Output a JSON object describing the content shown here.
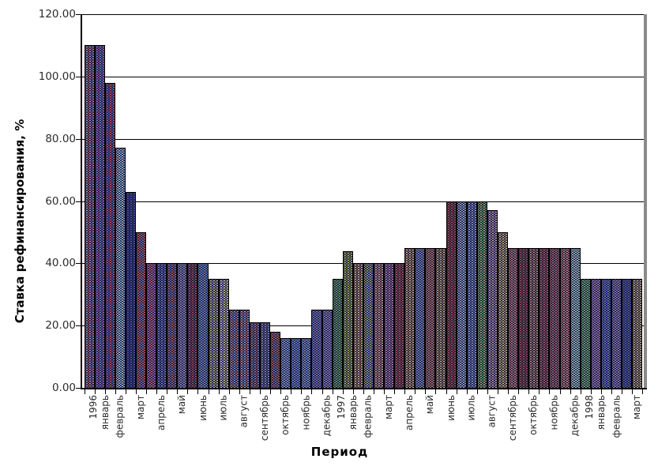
{
  "chart_data": {
    "type": "bar",
    "title": "",
    "ylabel": "Ставка рефинансирования, %",
    "xlabel": "Период",
    "ylim": [
      0,
      120
    ],
    "grid": true,
    "legend_position": "none",
    "yticks": [
      {
        "value": 0,
        "label": "0.00"
      },
      {
        "value": 20,
        "label": "20.00"
      },
      {
        "value": 40,
        "label": "40.00"
      },
      {
        "value": 60,
        "label": "60.00"
      },
      {
        "value": 80,
        "label": "80.00"
      },
      {
        "value": 100,
        "label": "100.00"
      },
      {
        "value": 120,
        "label": "120.00"
      }
    ],
    "x_tick_labels": [
      [
        "1996",
        "январь"
      ],
      [
        "февраль"
      ],
      [
        "март"
      ],
      [
        "апрель"
      ],
      [
        "май"
      ],
      [
        "июнь"
      ],
      [
        "июль"
      ],
      [
        "август"
      ],
      [
        "сентябрь"
      ],
      [
        "октябрь"
      ],
      [
        "ноябрь"
      ],
      [
        "декабрь"
      ],
      [
        "1997",
        "январь"
      ],
      [
        "февраль"
      ],
      [
        "март"
      ],
      [
        "апрель"
      ],
      [
        "май"
      ],
      [
        "июнь"
      ],
      [
        "июль"
      ],
      [
        "август"
      ],
      [
        "сентябрь"
      ],
      [
        "октябрь"
      ],
      [
        "ноябрь"
      ],
      [
        "декабрь"
      ],
      [
        "1998",
        "январь"
      ],
      [
        "февраль"
      ],
      [
        "март"
      ]
    ],
    "label_every_n_bars": 2,
    "bars": [
      {
        "value": 110,
        "dot1": "#8f96e0",
        "dot2": "#b05868"
      },
      {
        "value": 110,
        "dot1": "#7d88dd",
        "dot2": "#9a5bb0"
      },
      {
        "value": 98,
        "dot1": "#c75f6e",
        "dot2": "#5a68c8"
      },
      {
        "value": 77,
        "dot1": "#86b2f0",
        "dot2": "#d8dcf8"
      },
      {
        "value": 63,
        "dot1": "#5560c0",
        "dot2": "#38408c"
      },
      {
        "value": 50,
        "dot1": "#c05a64",
        "dot2": "#8888cc"
      },
      {
        "value": 40,
        "dot1": "#a86ac8",
        "dot2": "#c87888"
      },
      {
        "value": 40,
        "dot1": "#7688d8",
        "dot2": "#5a5aa8"
      },
      {
        "value": 40,
        "dot1": "#b86a74",
        "dot2": "#6a74c8"
      },
      {
        "value": 40,
        "dot1": "#8a7ad0",
        "dot2": "#b0b0e0"
      },
      {
        "value": 40,
        "dot1": "#a85866",
        "dot2": "#6a4a78"
      },
      {
        "value": 40,
        "dot1": "#6a88d8",
        "dot2": "#9aa8e0"
      },
      {
        "value": 35,
        "dot1": "#cabd88",
        "dot2": "#8a96d0"
      },
      {
        "value": 35,
        "dot1": "#d8d0a0",
        "dot2": "#a0a8d8"
      },
      {
        "value": 25,
        "dot1": "#8090d8",
        "dot2": "#c07a86"
      },
      {
        "value": 25,
        "dot1": "#9aa4e2",
        "dot2": "#b06a78"
      },
      {
        "value": 21,
        "dot1": "#7a86cc",
        "dot2": "#a05a6a"
      },
      {
        "value": 21,
        "dot1": "#8a96d4",
        "dot2": "#6a5aa0"
      },
      {
        "value": 18,
        "dot1": "#b06072",
        "dot2": "#7a86c8"
      },
      {
        "value": 16,
        "dot1": "#7e9ae6",
        "dot2": "#aab6ee"
      },
      {
        "value": 16,
        "dot1": "#6a88e0",
        "dot2": "#92a2ea"
      },
      {
        "value": 16,
        "dot1": "#7890e2",
        "dot2": "#a0b0f0"
      },
      {
        "value": 25,
        "dot1": "#9078d0",
        "dot2": "#7a8ad8"
      },
      {
        "value": 25,
        "dot1": "#8886d8",
        "dot2": "#aa98e0"
      },
      {
        "value": 35,
        "dot1": "#5a9a6a",
        "dot2": "#88b890"
      },
      {
        "value": 44,
        "dot1": "#c0b878",
        "dot2": "#7a9a5a"
      },
      {
        "value": 40,
        "dot1": "#d0c4a0",
        "dot2": "#a06a5a"
      },
      {
        "value": 40,
        "dot1": "#7a8ad8",
        "dot2": "#c8b890"
      },
      {
        "value": 40,
        "dot1": "#d0a8a0",
        "dot2": "#b87a88"
      },
      {
        "value": 40,
        "dot1": "#b08ac0",
        "dot2": "#9a6aaa"
      },
      {
        "value": 40,
        "dot1": "#b8606a",
        "dot2": "#8a4a58"
      },
      {
        "value": 45,
        "dot1": "#d2bc94",
        "dot2": "#a87a6a"
      },
      {
        "value": 45,
        "dot1": "#7a8ad8",
        "dot2": "#98a6e0"
      },
      {
        "value": 45,
        "dot1": "#b06a78",
        "dot2": "#c89a8a"
      },
      {
        "value": 45,
        "dot1": "#c8b494",
        "dot2": "#9a7a68"
      },
      {
        "value": 60,
        "dot1": "#b05a64",
        "dot2": "#8a4a52"
      },
      {
        "value": 60,
        "dot1": "#8a98d8",
        "dot2": "#c0ccf0"
      },
      {
        "value": 60,
        "dot1": "#9aa8e0",
        "dot2": "#6a7ac8"
      },
      {
        "value": 60,
        "dot1": "#5a9a6a",
        "dot2": "#c8c890"
      },
      {
        "value": 57,
        "dot1": "#c8a8b8",
        "dot2": "#9a86c8"
      },
      {
        "value": 50,
        "dot1": "#d0c098",
        "dot2": "#b89a78"
      },
      {
        "value": 45,
        "dot1": "#b0687a",
        "dot2": "#d0a8a8"
      },
      {
        "value": 45,
        "dot1": "#a85a68",
        "dot2": "#7a4a58"
      },
      {
        "value": 45,
        "dot1": "#c09a8a",
        "dot2": "#98687a"
      },
      {
        "value": 45,
        "dot1": "#b0687a",
        "dot2": "#8a5866"
      },
      {
        "value": 45,
        "dot1": "#9a5a6a",
        "dot2": "#c08a96"
      },
      {
        "value": 45,
        "dot1": "#b06a78",
        "dot2": "#d8b0a8"
      },
      {
        "value": 45,
        "dot1": "#9ec8d8",
        "dot2": "#c8e0e8"
      },
      {
        "value": 35,
        "dot1": "#6aa878",
        "dot2": "#98c8a0"
      },
      {
        "value": 35,
        "dot1": "#9a7ac8",
        "dot2": "#b898d8"
      },
      {
        "value": 35,
        "dot1": "#5a6ad8",
        "dot2": "#8a98e8"
      },
      {
        "value": 35,
        "dot1": "#8a7ad0",
        "dot2": "#aa9ae0"
      },
      {
        "value": 35,
        "dot1": "#4a5ab8",
        "dot2": "#6a7ac8"
      },
      {
        "value": 35,
        "dot1": "#c8b494",
        "dot2": "#a8927a"
      }
    ]
  },
  "colors": {
    "axis": "#000000",
    "gridline": "#000000",
    "right_border": "#8a8a8a",
    "bar_base": "#10102a",
    "tick_label": "#2b2b2b",
    "background": "#ffffff"
  }
}
